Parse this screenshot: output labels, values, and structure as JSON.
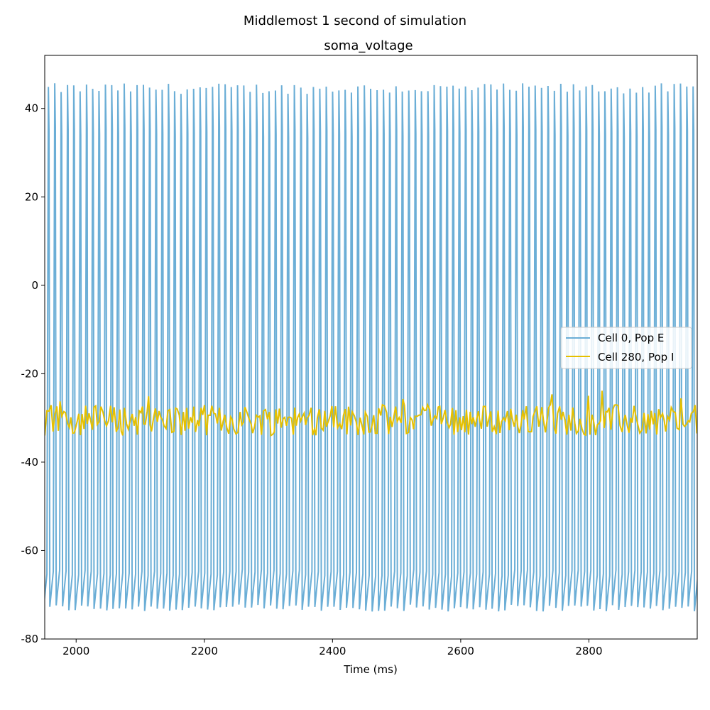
{
  "figure": {
    "suptitle": "Middlemost 1 second of simulation"
  },
  "chart_data": {
    "type": "line",
    "title": "soma_voltage",
    "xlabel": "Time (ms)",
    "ylabel": "",
    "xlim": [
      1951,
      2969
    ],
    "ylim": [
      -80,
      52
    ],
    "xticks": [
      2000,
      2200,
      2400,
      2600,
      2800
    ],
    "yticks": [
      -80,
      -60,
      -40,
      -20,
      0,
      20,
      40
    ],
    "grid": false,
    "legend_position": "center-right",
    "series": [
      {
        "name": "Cell 0, Pop E",
        "color": "#6baed6",
        "description_of_shape": "regular spiking oscillation",
        "spike_period_ms": 9.85,
        "peak_mV": 44.5,
        "trough_mV": -73
      },
      {
        "name": "Cell 280, Pop I",
        "color": "#e6c000",
        "description_of_shape": "noisy subthreshold fluctuation",
        "mean_mV": -30.5,
        "amplitude_mV": 3.5
      }
    ]
  }
}
